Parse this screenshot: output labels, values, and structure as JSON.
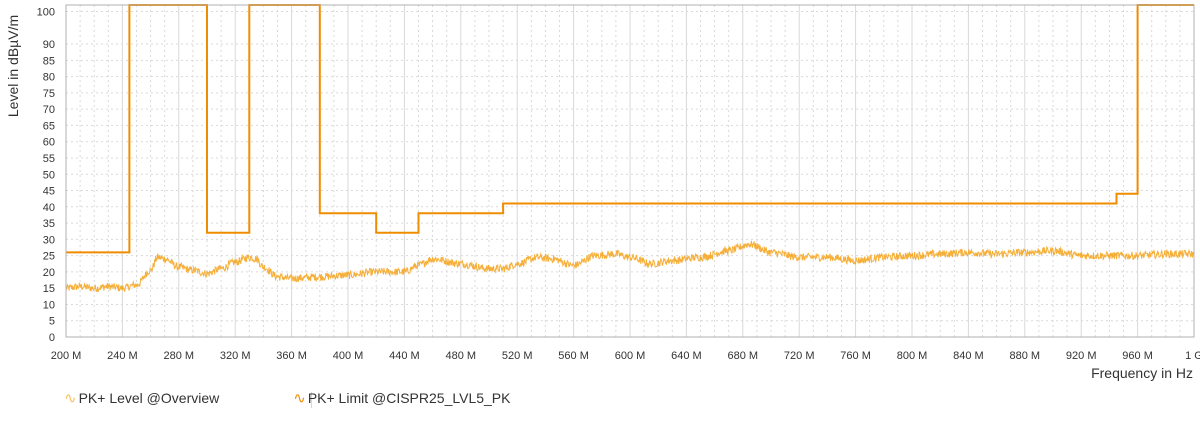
{
  "chart_data": {
    "type": "line",
    "xlabel": "Frequency in Hz",
    "ylabel": "Level in dBµV/m",
    "xlim": [
      200000000,
      1000000000
    ],
    "ylim": [
      0,
      102
    ],
    "grid": true,
    "legend_position": "bottom-left",
    "x_ticks": [
      {
        "value": 200000000,
        "label": "200 M"
      },
      {
        "value": 240000000,
        "label": "240 M"
      },
      {
        "value": 280000000,
        "label": "280 M"
      },
      {
        "value": 320000000,
        "label": "320 M"
      },
      {
        "value": 360000000,
        "label": "360 M"
      },
      {
        "value": 400000000,
        "label": "400 M"
      },
      {
        "value": 440000000,
        "label": "440 M"
      },
      {
        "value": 480000000,
        "label": "480 M"
      },
      {
        "value": 520000000,
        "label": "520 M"
      },
      {
        "value": 560000000,
        "label": "560 M"
      },
      {
        "value": 600000000,
        "label": "600 M"
      },
      {
        "value": 640000000,
        "label": "640 M"
      },
      {
        "value": 680000000,
        "label": "680 M"
      },
      {
        "value": 720000000,
        "label": "720 M"
      },
      {
        "value": 760000000,
        "label": "760 M"
      },
      {
        "value": 800000000,
        "label": "800 M"
      },
      {
        "value": 840000000,
        "label": "840 M"
      },
      {
        "value": 880000000,
        "label": "880 M"
      },
      {
        "value": 920000000,
        "label": "920 M"
      },
      {
        "value": 960000000,
        "label": "960 M"
      },
      {
        "value": 1000000000,
        "label": "1 G"
      }
    ],
    "y_ticks": [
      0,
      5,
      10,
      15,
      20,
      25,
      30,
      35,
      40,
      45,
      50,
      55,
      60,
      65,
      70,
      75,
      80,
      85,
      90,
      100
    ],
    "series": [
      {
        "name": "PK+ Level @Overview",
        "color": "#f5a623",
        "x": [
          200000000,
          210000000,
          220000000,
          230000000,
          240000000,
          250000000,
          260000000,
          265000000,
          270000000,
          280000000,
          290000000,
          300000000,
          310000000,
          320000000,
          330000000,
          335000000,
          340000000,
          350000000,
          360000000,
          380000000,
          400000000,
          420000000,
          440000000,
          450000000,
          460000000,
          480000000,
          500000000,
          510000000,
          520000000,
          535000000,
          545000000,
          560000000,
          575000000,
          590000000,
          600000000,
          615000000,
          630000000,
          650000000,
          670000000,
          685000000,
          700000000,
          720000000,
          740000000,
          760000000,
          780000000,
          800000000,
          820000000,
          840000000,
          860000000,
          880000000,
          900000000,
          920000000,
          940000000,
          960000000,
          980000000,
          1000000000
        ],
        "values": [
          15,
          15.5,
          15,
          15.5,
          15,
          16,
          20.5,
          24.5,
          24,
          21.5,
          20.5,
          19.5,
          21,
          23,
          24.5,
          24,
          21.5,
          18.5,
          18,
          18.5,
          19,
          20,
          20,
          22,
          24,
          22.5,
          21,
          21,
          22.5,
          24.5,
          24,
          22,
          25,
          25.5,
          24.5,
          22.5,
          23.5,
          24.5,
          26.5,
          28.5,
          26,
          24.5,
          24.5,
          23.5,
          24.5,
          25,
          25.5,
          26,
          25.5,
          26,
          26.5,
          25,
          25,
          25,
          25.5,
          25.5
        ]
      },
      {
        "name": "PK+ Limit @CISPR25_LVL5_PK",
        "color": "#f08c00",
        "x": [
          200000000,
          245000000,
          245000000,
          300000000,
          300000000,
          330000000,
          330000000,
          380000000,
          380000000,
          420000000,
          420000000,
          450000000,
          450000000,
          510000000,
          510000000,
          945000000,
          945000000,
          960000000,
          960000000,
          1000000000
        ],
        "values": [
          26,
          26,
          102,
          102,
          32,
          32,
          102,
          102,
          38,
          38,
          32,
          32,
          38,
          38,
          41,
          41,
          44,
          44,
          102,
          102
        ]
      }
    ]
  },
  "legend": {
    "level_label": "PK+ Level @Overview",
    "limit_label": "PK+ Limit @CISPR25_LVL5_PK",
    "wave_glyph": "∿"
  }
}
